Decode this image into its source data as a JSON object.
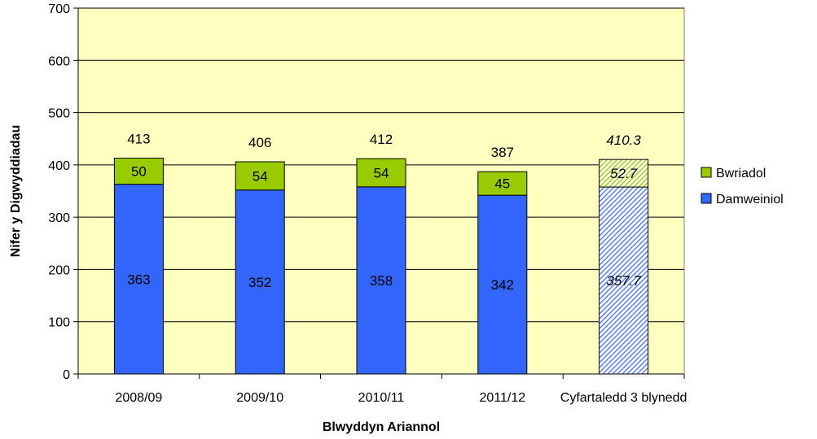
{
  "chart_data": {
    "type": "bar",
    "stacked": true,
    "categories": [
      "2008/09",
      "2009/10",
      "2010/11",
      "2011/12",
      "Cyfartaledd 3 blynedd"
    ],
    "series": [
      {
        "name": "Damweiniol",
        "values": [
          363,
          352,
          358,
          342,
          357.7
        ],
        "labels": [
          "363",
          "352",
          "358",
          "342",
          "357.7"
        ],
        "color": "#3366ff"
      },
      {
        "name": "Bwriadol",
        "values": [
          50,
          54,
          54,
          45,
          52.7
        ],
        "labels": [
          "50",
          "54",
          "54",
          "45",
          "52.7"
        ],
        "color": "#99cc00"
      }
    ],
    "totals": [
      413,
      406,
      412,
      387,
      410.3
    ],
    "total_labels": [
      "413",
      "406",
      "412",
      "387",
      "410.3"
    ],
    "hatched_category_index": 4,
    "xlabel": "Blwyddyn Ariannol",
    "ylabel": "Nifer y Digwyddiadau",
    "ylim": [
      0,
      700
    ],
    "yticks": [
      0,
      100,
      200,
      300,
      400,
      500,
      600,
      700
    ],
    "ytick_labels": [
      "0",
      "100",
      "200",
      "300",
      "400",
      "500",
      "600",
      "700"
    ],
    "grid": true,
    "plot_background": "#ffffc0",
    "legend_position": "right",
    "legend_order": [
      "Bwriadol",
      "Damweiniol"
    ]
  }
}
